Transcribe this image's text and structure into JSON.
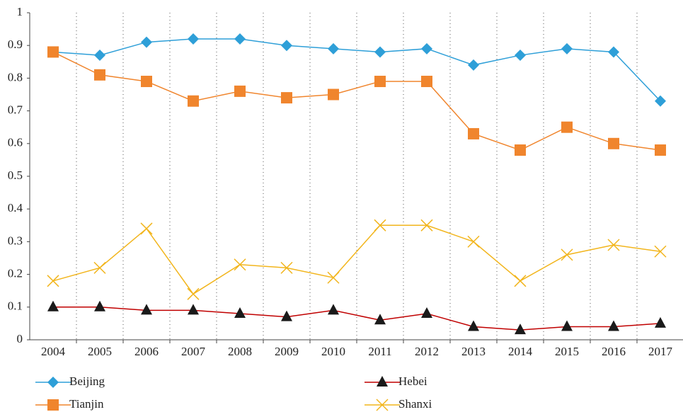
{
  "chart_data": {
    "type": "line",
    "categories": [
      "2004",
      "2005",
      "2006",
      "2007",
      "2008",
      "2009",
      "2010",
      "2011",
      "2012",
      "2013",
      "2014",
      "2015",
      "2016",
      "2017"
    ],
    "series": [
      {
        "name": "Beijing",
        "color": "#2e9fd8",
        "marker_color": "#2e9fd8",
        "marker": "diamond",
        "values": [
          0.88,
          0.87,
          0.91,
          0.92,
          0.92,
          0.9,
          0.89,
          0.88,
          0.89,
          0.84,
          0.87,
          0.89,
          0.88,
          0.73
        ]
      },
      {
        "name": "Tianjin",
        "color": "#f0852d",
        "marker_color": "#f0852d",
        "marker": "square",
        "values": [
          0.88,
          0.81,
          0.79,
          0.73,
          0.76,
          0.74,
          0.75,
          0.79,
          0.79,
          0.63,
          0.58,
          0.65,
          0.6,
          0.58
        ]
      },
      {
        "name": "Hebei",
        "color": "#c00000",
        "marker_color": "#1a1a1a",
        "marker": "triangle",
        "values": [
          0.1,
          0.1,
          0.09,
          0.09,
          0.08,
          0.07,
          0.09,
          0.06,
          0.08,
          0.04,
          0.03,
          0.04,
          0.04,
          0.05
        ]
      },
      {
        "name": "Shanxi",
        "color": "#f2b51c",
        "marker_color": "#f2b51c",
        "marker": "x",
        "values": [
          0.18,
          0.22,
          0.34,
          0.14,
          0.23,
          0.22,
          0.19,
          0.35,
          0.35,
          0.3,
          0.18,
          0.26,
          0.29,
          0.27
        ]
      }
    ],
    "ylim": [
      0,
      1
    ],
    "yticks": [
      0,
      0.1,
      0.2,
      0.3,
      0.4,
      0.5,
      0.6,
      0.7,
      0.8,
      0.9,
      1
    ],
    "xgrid": true
  }
}
